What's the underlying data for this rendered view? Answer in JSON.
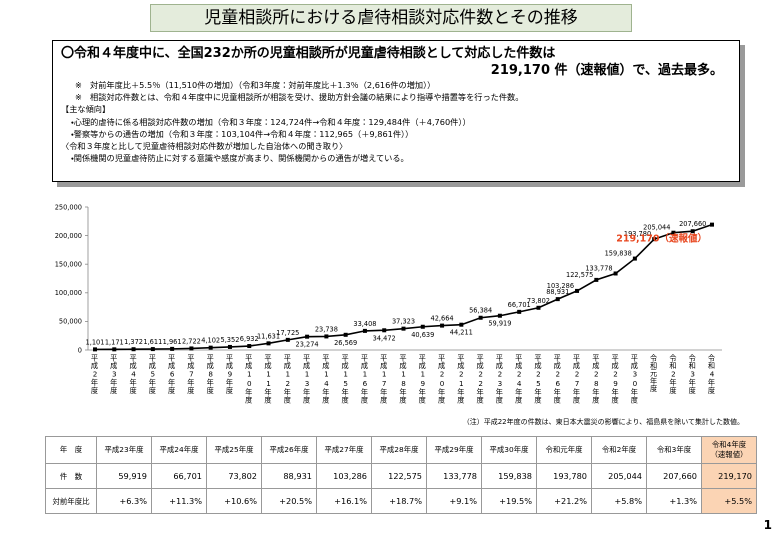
{
  "title": "児童相談所における虐待相談対応件数とその推移",
  "summary": {
    "lead": "〇令和４年度中に、全国232か所の児童相談所が児童虐待相談として対応した件数は",
    "lead_result": "219,170 件（速報値）で、過去最多。",
    "notes": [
      "※　対前年度比＋5.5％（11,510件の増加）（令和3年度：対前年度比＋1.3％（2,616件の増加））",
      "※　相談対応件数とは、令和４年度中に児童相談所が相談を受け、援助方針会議の結果により指導や措置等を行った件数。"
    ],
    "trend_heading": "【主な傾向】",
    "trends": [
      "・心理的虐待に係る相談対応件数の増加（令和３年度：124,724件→令和４年度：129,484件（＋4,760件））",
      "・警察等からの通告の増加（令和３年度：103,104件→令和４年度：112,965（＋9,861件））"
    ],
    "interview_heading": "〈令和３年度と比して児童虐待相談対応件数が増加した自治体への聞き取り〉",
    "interviews": [
      "・関係機関の児童虐待防止に対する意識や感度が高まり、関係機関からの通告が増えている。"
    ]
  },
  "chart_data": {
    "type": "line",
    "categories": [
      "平成2年度",
      "平成3年度",
      "平成4年度",
      "平成5年度",
      "平成6年度",
      "平成7年度",
      "平成8年度",
      "平成9年度",
      "平成10年度",
      "平成11年度",
      "平成12年度",
      "平成13年度",
      "平成14年度",
      "平成15年度",
      "平成16年度",
      "平成17年度",
      "平成18年度",
      "平成19年度",
      "平成20年度",
      "平成21年度",
      "平成22年度",
      "平成23年度",
      "平成24年度",
      "平成25年度",
      "平成26年度",
      "平成27年度",
      "平成28年度",
      "平成29年度",
      "平成30年度",
      "令和元年度",
      "令和2年度",
      "令和3年度",
      "令和4年度"
    ],
    "values": [
      1101,
      1171,
      1372,
      1611,
      1961,
      2722,
      4102,
      5352,
      6932,
      11631,
      17725,
      23274,
      23738,
      26569,
      33408,
      34472,
      37323,
      40639,
      42664,
      44211,
      56384,
      59919,
      66701,
      73802,
      88931,
      103286,
      122575,
      133778,
      159838,
      193780,
      205044,
      207660,
      219170
    ],
    "value_labels": [
      "1,101",
      "1,171",
      "1,372",
      "1,611",
      "1,961",
      "2,722",
      "4,102",
      "5,352",
      "6,932",
      "11,631",
      "17,725",
      "23,274",
      "23,738",
      "26,569",
      "33,408",
      "34,472",
      "37,323",
      "40,639",
      "42,664",
      "44,211",
      "56,384",
      "59,919",
      "66,701",
      "73,802",
      "88,931",
      "103,286",
      "122,575",
      "133,778",
      "159,838",
      "193,780",
      "205,044",
      "207,660",
      "219,170（速報値）"
    ],
    "color": "#000000",
    "highlight_color": "#e8461e",
    "ylim": [
      0,
      250000
    ],
    "yticks": [
      0,
      {
        "value": 50000,
        "label": "50,000"
      },
      {
        "value": 100000,
        "label": "100,000"
      },
      {
        "value": 150000,
        "label": "150,000"
      },
      {
        "value": 200000,
        "label": "200,000"
      },
      {
        "value": 250000,
        "label": "250,000"
      }
    ],
    "note": "（注）平成22年度の件数は、東日本大震災の影響により、福島県を除いて集計した数値。"
  },
  "table": {
    "header": [
      "年　度",
      "平成23年度",
      "平成24年度",
      "平成25年度",
      "平成26年度",
      "平成27年度",
      "平成28年度",
      "平成29年度",
      "平成30年度",
      "令和元年度",
      "令和2年度",
      "令和3年度",
      "令和4年度\n（速報値）"
    ],
    "rows": [
      [
        "件　数",
        "59,919",
        "66,701",
        "73,802",
        "88,931",
        "103,286",
        "122,575",
        "133,778",
        "159,838",
        "193,780",
        "205,044",
        "207,660",
        "219,170"
      ],
      [
        "対前年度比",
        "+6.3%",
        "+11.3%",
        "+10.6%",
        "+20.5%",
        "+16.1%",
        "+18.7%",
        "+9.1%",
        "+19.5%",
        "+21.2%",
        "+5.8%",
        "+1.3%",
        "+5.5%"
      ]
    ]
  },
  "page_number": "1"
}
